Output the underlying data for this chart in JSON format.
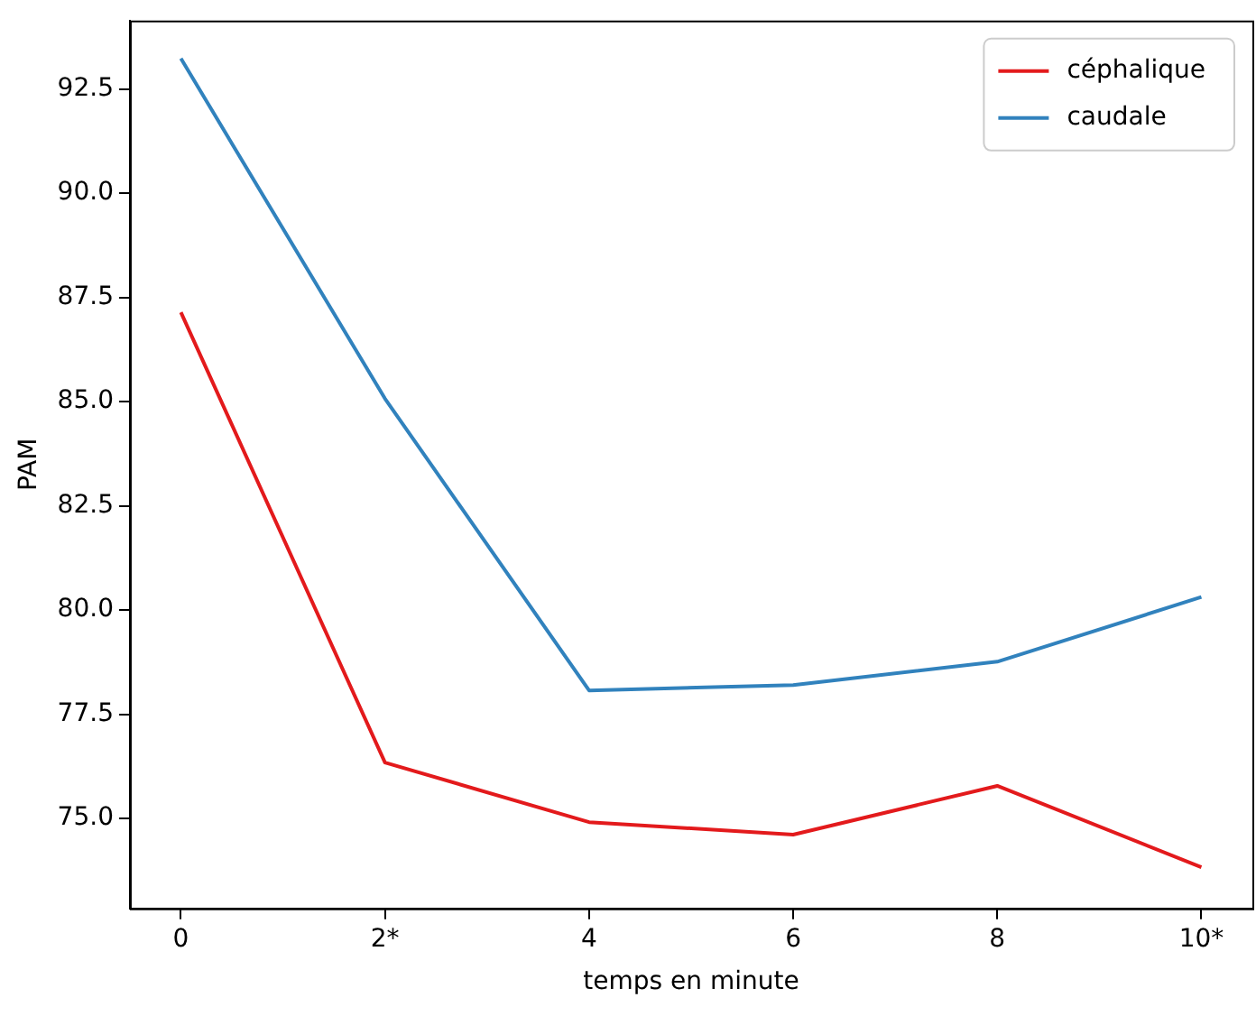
{
  "chart_data": {
    "type": "line",
    "xlabel": "temps en minute",
    "ylabel": "PAM",
    "categories": [
      "0",
      "2*",
      "4",
      "6",
      "8",
      "10*"
    ],
    "series": [
      {
        "name": "céphalique",
        "color": "#e31a1c",
        "values": [
          87.14,
          76.34,
          74.91,
          74.61,
          75.78,
          73.83
        ]
      },
      {
        "name": "caudale",
        "color": "#3182bd",
        "values": [
          93.23,
          85.07,
          78.07,
          78.2,
          78.76,
          80.31
        ]
      }
    ],
    "ylim": [
      72.84,
      94.14
    ],
    "yticks": [
      {
        "value": 75,
        "label": "75.0"
      },
      {
        "value": 77.5,
        "label": "77.5"
      },
      {
        "value": 80,
        "label": "80.0"
      },
      {
        "value": 82.5,
        "label": "82.5"
      },
      {
        "value": 85,
        "label": "85.0"
      },
      {
        "value": 87.5,
        "label": "87.5"
      },
      {
        "value": 90,
        "label": "90.0"
      },
      {
        "value": 92.5,
        "label": "92.5"
      }
    ],
    "grid": false,
    "legend": "top right",
    "marker": "none",
    "line_style": "solid"
  }
}
